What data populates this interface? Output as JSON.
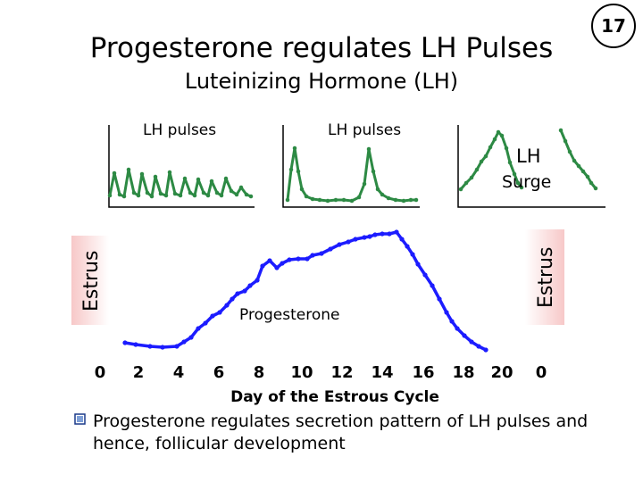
{
  "slide": {
    "title": "Progesterone regulates LH Pulses",
    "subtitle": "Luteinizing Hormone (LH)",
    "slide_number": "17"
  },
  "figure": {
    "panel_labels": [
      "LH pulses",
      "LH pulses"
    ],
    "surge_label_line1": "LH",
    "surge_label_line2": "Surge",
    "estrus_left": "Estrus",
    "estrus_right": "Estrus",
    "curve_label": "Progesterone",
    "curve_color": "#1c1cff",
    "lh_trace_color": "#2d8a44",
    "x_ticks": [
      "0",
      "2",
      "4",
      "6",
      "8",
      "10",
      "12",
      "14",
      "16",
      "18",
      "20",
      "0"
    ],
    "x_axis_title": "Day of the Estrous Cycle"
  },
  "bullet": {
    "icon": "checkbox-bullet-icon",
    "text": "Progesterone regulates secretion pattern of LH pulses and hence, follicular development"
  }
}
